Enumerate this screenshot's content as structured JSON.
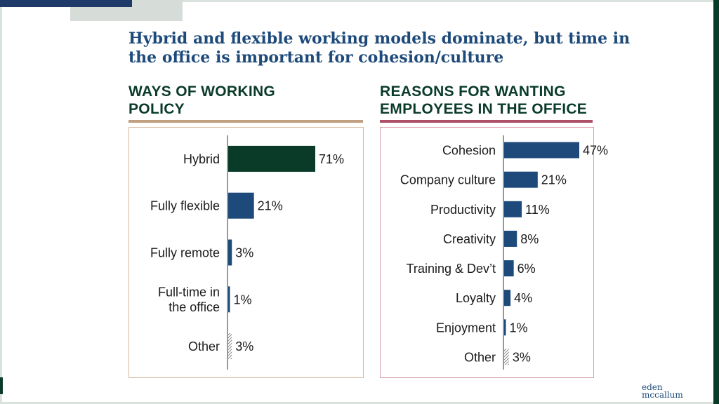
{
  "title": "Hybrid and flexible working models dominate, but time in the office is important for cohesion/culture",
  "logo": {
    "line1": "eden",
    "line2": "mccallum"
  },
  "colors": {
    "dark_green": "#0a3b29",
    "navy": "#1d4a7a",
    "tan_rule": "#c0a080",
    "rose_rule": "#b05068",
    "panel_border_left": "#d9b9a0",
    "panel_border_right": "#d6a0ac"
  },
  "chart_data": [
    {
      "type": "bar",
      "orientation": "horizontal",
      "title": "WAYS OF WORKING\nPOLICY",
      "categories": [
        "Hybrid",
        "Fully flexible",
        "Fully remote",
        "Full-time in the office",
        "Other"
      ],
      "values": [
        71,
        21,
        3,
        1,
        3
      ],
      "value_labels": [
        "71%",
        "21%",
        "3%",
        "1%",
        "3%"
      ],
      "bar_styles": [
        "dark_green",
        "navy",
        "navy",
        "navy",
        "hatched"
      ],
      "xlim": [
        0,
        71
      ],
      "grid": false
    },
    {
      "type": "bar",
      "orientation": "horizontal",
      "title": "REASONS FOR WANTING\nEMPLOYEES IN THE OFFICE",
      "categories": [
        "Cohesion",
        "Company culture",
        "Productivity",
        "Creativity",
        "Training & Dev’t",
        "Loyalty",
        "Enjoyment",
        "Other"
      ],
      "values": [
        47,
        21,
        11,
        8,
        6,
        4,
        1,
        3
      ],
      "value_labels": [
        "47%",
        "21%",
        "11%",
        "8%",
        "6%",
        "4%",
        "1%",
        "3%"
      ],
      "bar_styles": [
        "navy",
        "navy",
        "navy",
        "navy",
        "navy",
        "navy",
        "navy",
        "hatched"
      ],
      "xlim": [
        0,
        47
      ],
      "grid": false
    }
  ]
}
